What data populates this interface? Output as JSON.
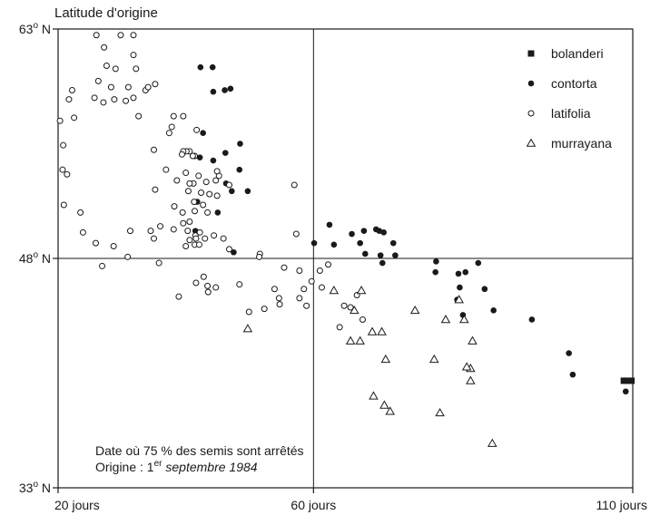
{
  "chart_data": {
    "type": "scatter",
    "title": "",
    "ylabel": "Latitude d'origine",
    "xlabel": "",
    "xlim": [
      20,
      110
    ],
    "ylim": [
      33,
      63
    ],
    "x_ticks": [
      {
        "value": 20,
        "label": "20 jours"
      },
      {
        "value": 60,
        "label": "60 jours"
      },
      {
        "value": 110,
        "label": "110 jours"
      }
    ],
    "y_ticks": [
      {
        "value": 33,
        "deg": "33",
        "suffix": " N"
      },
      {
        "value": 48,
        "deg": "48",
        "suffix": " N"
      },
      {
        "value": 63,
        "deg": "63",
        "suffix": " N"
      }
    ],
    "grid": true,
    "legend_position": "top-right",
    "annotation": {
      "line1": "Date où 75 % des semis sont arrêtés",
      "line2_prefix": "Origine : 1",
      "line2_sup": "er",
      "line2_italic": " septembre 1984"
    },
    "series": [
      {
        "name": "bolanderi",
        "marker": "square",
        "points": [
          [
            108.6,
            40.0
          ],
          [
            109.1,
            40.0
          ],
          [
            109.8,
            40.0
          ]
        ]
      },
      {
        "name": "contorta",
        "marker": "filled-circle",
        "points": [
          [
            42.3,
            60.5
          ],
          [
            44.2,
            60.5
          ],
          [
            44.3,
            58.9
          ],
          [
            46.1,
            59.0
          ],
          [
            47.0,
            59.1
          ],
          [
            42.7,
            56.2
          ],
          [
            42.2,
            54.6
          ],
          [
            44.3,
            54.4
          ],
          [
            46.2,
            54.9
          ],
          [
            48.5,
            55.5
          ],
          [
            48.4,
            53.8
          ],
          [
            46.3,
            52.9
          ],
          [
            47.2,
            52.4
          ],
          [
            49.7,
            52.4
          ],
          [
            45.0,
            51.0
          ],
          [
            41.8,
            51.7
          ],
          [
            41.5,
            49.8
          ],
          [
            47.5,
            48.4
          ],
          [
            60.1,
            49.0
          ],
          [
            62.5,
            50.2
          ],
          [
            63.2,
            48.9
          ],
          [
            66.0,
            49.6
          ],
          [
            67.9,
            49.8
          ],
          [
            67.3,
            49.0
          ],
          [
            68.1,
            48.3
          ],
          [
            70.3,
            49.8
          ],
          [
            69.8,
            49.9
          ],
          [
            70.5,
            48.2
          ],
          [
            71.0,
            49.7
          ],
          [
            72.5,
            49.0
          ],
          [
            72.8,
            48.2
          ],
          [
            70.8,
            47.7
          ],
          [
            79.2,
            47.8
          ],
          [
            79.1,
            47.1
          ],
          [
            82.7,
            47.0
          ],
          [
            83.8,
            47.1
          ],
          [
            85.8,
            47.7
          ],
          [
            82.9,
            46.1
          ],
          [
            82.5,
            45.3
          ],
          [
            86.8,
            46.0
          ],
          [
            83.4,
            44.3
          ],
          [
            88.2,
            44.6
          ],
          [
            94.2,
            44.0
          ],
          [
            100.0,
            41.8
          ],
          [
            100.6,
            40.4
          ],
          [
            108.9,
            39.3
          ]
        ]
      },
      {
        "name": "latifolia",
        "marker": "open-circle",
        "points": [
          [
            26.0,
            62.6
          ],
          [
            27.2,
            61.8
          ],
          [
            27.6,
            60.6
          ],
          [
            29.0,
            60.4
          ],
          [
            31.8,
            62.6
          ],
          [
            32.2,
            60.4
          ],
          [
            28.3,
            59.2
          ],
          [
            29.8,
            62.6
          ],
          [
            26.3,
            59.6
          ],
          [
            31.0,
            59.2
          ],
          [
            31.8,
            61.3
          ],
          [
            32.6,
            57.3
          ],
          [
            33.7,
            59.0
          ],
          [
            34.1,
            59.2
          ],
          [
            35.2,
            59.4
          ],
          [
            38.1,
            57.3
          ],
          [
            39.6,
            57.3
          ],
          [
            37.4,
            56.2
          ],
          [
            37.8,
            56.6
          ],
          [
            35.0,
            55.1
          ],
          [
            41.7,
            56.4
          ],
          [
            41.4,
            54.7
          ],
          [
            41.1,
            54.7
          ],
          [
            40.6,
            55.0
          ],
          [
            40.1,
            55.0
          ],
          [
            39.6,
            55.0
          ],
          [
            40.0,
            53.6
          ],
          [
            42.0,
            53.4
          ],
          [
            43.2,
            53.0
          ],
          [
            44.7,
            53.1
          ],
          [
            45.2,
            53.4
          ],
          [
            44.9,
            53.7
          ],
          [
            46.8,
            52.8
          ],
          [
            38.6,
            53.1
          ],
          [
            41.2,
            52.9
          ],
          [
            40.4,
            52.4
          ],
          [
            42.4,
            52.3
          ],
          [
            43.7,
            52.2
          ],
          [
            44.9,
            52.1
          ],
          [
            41.3,
            51.7
          ],
          [
            40.6,
            52.9
          ],
          [
            36.9,
            53.8
          ],
          [
            35.2,
            52.5
          ],
          [
            38.2,
            51.4
          ],
          [
            39.5,
            51.0
          ],
          [
            41.4,
            51.1
          ],
          [
            43.4,
            51.0
          ],
          [
            42.7,
            51.5
          ],
          [
            39.6,
            50.3
          ],
          [
            40.3,
            49.8
          ],
          [
            40.6,
            50.4
          ],
          [
            41.5,
            49.5
          ],
          [
            40.6,
            49.2
          ],
          [
            41.6,
            49.3
          ],
          [
            43.0,
            49.3
          ],
          [
            44.4,
            49.5
          ],
          [
            45.9,
            49.3
          ],
          [
            42.2,
            49.7
          ],
          [
            40.0,
            48.8
          ],
          [
            41.4,
            48.9
          ],
          [
            42.1,
            48.9
          ],
          [
            38.1,
            49.9
          ],
          [
            35.0,
            49.3
          ],
          [
            36.0,
            50.1
          ],
          [
            34.5,
            49.8
          ],
          [
            31.3,
            49.8
          ],
          [
            35.8,
            47.7
          ],
          [
            30.9,
            48.1
          ],
          [
            28.7,
            48.8
          ],
          [
            26.9,
            47.5
          ],
          [
            25.9,
            49.0
          ],
          [
            23.9,
            49.7
          ],
          [
            23.5,
            51.0
          ],
          [
            21.4,
            53.5
          ],
          [
            20.9,
            51.5
          ],
          [
            20.7,
            53.8
          ],
          [
            20.8,
            55.4
          ],
          [
            20.3,
            57.0
          ],
          [
            25.7,
            58.5
          ],
          [
            27.1,
            58.2
          ],
          [
            28.8,
            58.4
          ],
          [
            30.6,
            58.3
          ],
          [
            31.8,
            58.5
          ],
          [
            22.2,
            59.0
          ],
          [
            21.7,
            58.4
          ],
          [
            22.5,
            57.2
          ],
          [
            39.4,
            54.8
          ],
          [
            43.4,
            46.2
          ],
          [
            44.7,
            46.1
          ],
          [
            48.4,
            46.3
          ],
          [
            46.8,
            48.6
          ],
          [
            41.6,
            46.4
          ],
          [
            42.8,
            46.8
          ],
          [
            38.9,
            45.5
          ],
          [
            43.5,
            45.8
          ],
          [
            51.6,
            48.3
          ],
          [
            55.4,
            47.4
          ],
          [
            57.3,
            49.6
          ],
          [
            57.0,
            52.8
          ],
          [
            61.0,
            47.2
          ],
          [
            53.9,
            46.0
          ],
          [
            49.9,
            44.5
          ],
          [
            54.6,
            45.4
          ],
          [
            54.7,
            45.0
          ],
          [
            57.8,
            47.2
          ],
          [
            58.5,
            46.0
          ],
          [
            52.3,
            44.7
          ],
          [
            51.5,
            48.1
          ],
          [
            57.8,
            45.4
          ],
          [
            58.9,
            44.9
          ],
          [
            59.7,
            46.5
          ],
          [
            61.3,
            46.1
          ],
          [
            62.3,
            47.6
          ],
          [
            64.8,
            44.9
          ],
          [
            64.1,
            43.5
          ],
          [
            66.8,
            45.6
          ],
          [
            65.8,
            44.8
          ],
          [
            67.7,
            44.0
          ]
        ]
      },
      {
        "name": "murrayana",
        "marker": "open-triangle",
        "points": [
          [
            49.7,
            43.4
          ],
          [
            63.2,
            45.9
          ],
          [
            67.5,
            45.9
          ],
          [
            66.4,
            44.6
          ],
          [
            75.9,
            44.6
          ],
          [
            65.8,
            42.6
          ],
          [
            67.3,
            42.6
          ],
          [
            69.2,
            43.2
          ],
          [
            70.7,
            43.2
          ],
          [
            71.3,
            41.4
          ],
          [
            78.9,
            41.4
          ],
          [
            83.6,
            44.0
          ],
          [
            84.9,
            42.6
          ],
          [
            84.6,
            40.8
          ],
          [
            84.6,
            40.0
          ],
          [
            69.4,
            39.0
          ],
          [
            71.1,
            38.4
          ],
          [
            72.0,
            38.0
          ],
          [
            79.8,
            37.9
          ],
          [
            82.8,
            45.3
          ],
          [
            80.7,
            44.0
          ],
          [
            84.0,
            40.9
          ],
          [
            88.0,
            35.9
          ]
        ]
      }
    ]
  }
}
